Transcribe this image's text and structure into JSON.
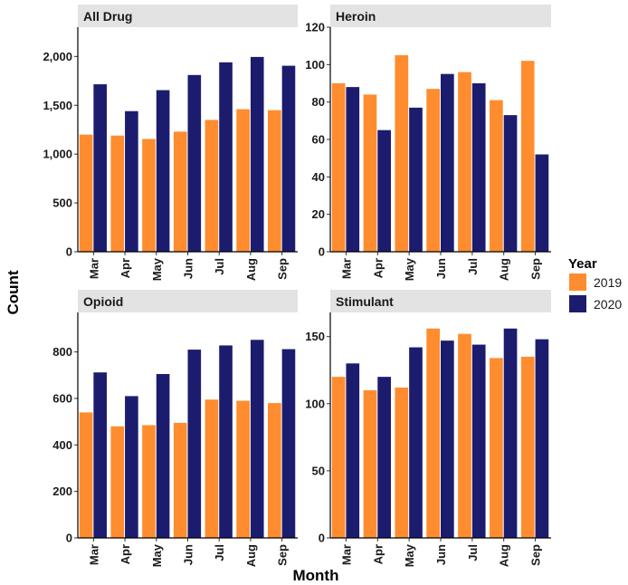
{
  "chart_data": {
    "type": "bar",
    "xlabel": "Month",
    "ylabel": "Count",
    "categories": [
      "Mar",
      "Apr",
      "May",
      "Jun",
      "Jul",
      "Aug",
      "Sep"
    ],
    "legend": {
      "title": "Year",
      "placement": "right",
      "entries": [
        {
          "label": "2019",
          "color": "#ff8c2e"
        },
        {
          "label": "2020",
          "color": "#1c1c6f"
        }
      ]
    },
    "colors": {
      "2019": "#ff8c2e",
      "2020": "#1c1c6f",
      "strip": "#e3e3e3"
    },
    "panels": [
      {
        "title": "All Drug",
        "ylim": [
          0,
          2300
        ],
        "yticks": [
          0,
          500,
          1000,
          1500,
          2000
        ],
        "ytick_labels": [
          "0",
          "500",
          "1,000",
          "1,500",
          "2,000"
        ],
        "series": [
          {
            "name": "2019",
            "values": [
              1200,
              1190,
              1155,
              1230,
              1350,
              1460,
              1450
            ]
          },
          {
            "name": "2020",
            "values": [
              1715,
              1440,
              1655,
              1810,
              1940,
              1995,
              1905
            ]
          }
        ]
      },
      {
        "title": "Heroin",
        "ylim": [
          0,
          120
        ],
        "yticks": [
          0,
          20,
          40,
          60,
          80,
          100,
          120
        ],
        "ytick_labels": [
          "0",
          "20",
          "40",
          "60",
          "80",
          "100",
          "120"
        ],
        "series": [
          {
            "name": "2019",
            "values": [
              90,
              84,
              105,
              87,
              96,
              81,
              102
            ]
          },
          {
            "name": "2020",
            "values": [
              88,
              65,
              77,
              95,
              90,
              73,
              52
            ]
          }
        ]
      },
      {
        "title": "Opioid",
        "ylim": [
          0,
          970
        ],
        "yticks": [
          0,
          200,
          400,
          600,
          800
        ],
        "ytick_labels": [
          "0",
          "200",
          "400",
          "600",
          "800"
        ],
        "series": [
          {
            "name": "2019",
            "values": [
              540,
              480,
              485,
              495,
              595,
              590,
              580
            ]
          },
          {
            "name": "2020",
            "values": [
              712,
              610,
              705,
              810,
              828,
              852,
              812
            ]
          }
        ]
      },
      {
        "title": "Stimulant",
        "ylim": [
          0,
          168
        ],
        "yticks": [
          0,
          50,
          100,
          150
        ],
        "ytick_labels": [
          "0",
          "50",
          "100",
          "150"
        ],
        "series": [
          {
            "name": "2019",
            "values": [
              120,
              110,
              112,
              156,
              152,
              134,
              135
            ]
          },
          {
            "name": "2020",
            "values": [
              130,
              120,
              142,
              147,
              144,
              156,
              148
            ]
          }
        ]
      }
    ]
  }
}
